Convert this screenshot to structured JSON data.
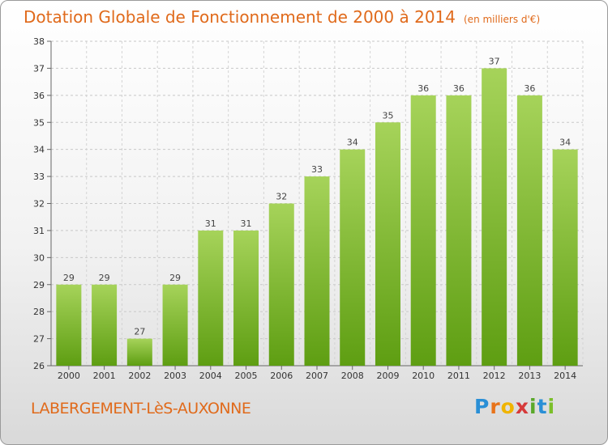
{
  "title": "Dotation Globale de Fonctionnement de 2000 à 2014",
  "subtitle": "(en milliers d'€)",
  "commune": "LABERGEMENT-LèS-AUXONNE",
  "logo": {
    "letters": [
      "P",
      "r",
      "o",
      "x",
      "i",
      "t",
      "i"
    ],
    "colors": [
      "#2a8fd6",
      "#e8731a",
      "#f0b400",
      "#d63a3a",
      "#5aa82a",
      "#2a8fd6",
      "#7bbf2a"
    ]
  },
  "colors": {
    "bar_top": "#a6d35a",
    "bar_bottom": "#5e9e12",
    "accent": "#e06a1b"
  },
  "chart_data": {
    "type": "bar",
    "categories": [
      "2000",
      "2001",
      "2002",
      "2003",
      "2004",
      "2005",
      "2006",
      "2007",
      "2008",
      "2009",
      "2010",
      "2011",
      "2012",
      "2013",
      "2014"
    ],
    "values": [
      29,
      29,
      27,
      29,
      31,
      31,
      32,
      33,
      34,
      35,
      36,
      36,
      37,
      36,
      34
    ],
    "ylim": [
      26,
      38
    ],
    "yticks": [
      26,
      27,
      28,
      29,
      30,
      31,
      32,
      33,
      34,
      35,
      36,
      37,
      38
    ],
    "grid": true
  }
}
